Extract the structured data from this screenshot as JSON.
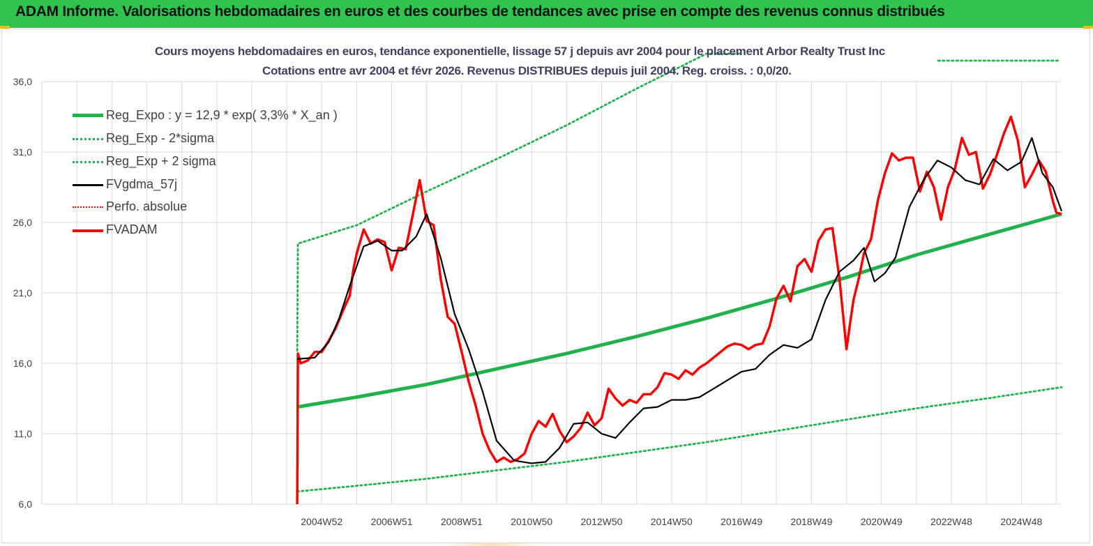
{
  "header": {
    "banner": "ADAM Informe. Valorisations hebdomadaires en euros et des courbes de tendances avec prise en compte des revenus connus distribués"
  },
  "colors": {
    "banner": "#2fc44e",
    "reg_expo": "#22b14c",
    "sigma": "#22b14c",
    "fvgdma": "#000000",
    "perfo": "#ff0000",
    "fvadam": "#ff0000",
    "grid": "#d9d9d9"
  },
  "chart_data": {
    "type": "line",
    "title_line1": "Cours moyens hebdomadaires en euros, tendance exponentielle, lissage 57 j depuis avr 2004 pour le placement Arbor Realty Trust Inc",
    "title_line2": "Cotations entre avr 2004 et févr 2026. Revenus DISTRIBUES depuis juil 2004. Reg. croiss. : 0,0/20.",
    "ylim": [
      6,
      36
    ],
    "xlim": [
      1997.0,
      2026.15
    ],
    "y_ticks": [
      "6,0",
      "11,0",
      "16,0",
      "21,0",
      "26,0",
      "31,0",
      "36,0"
    ],
    "x_ticks": [
      {
        "label": "2004W52",
        "x": 2005.0
      },
      {
        "label": "2006W51",
        "x": 2007.0
      },
      {
        "label": "2008W51",
        "x": 2009.0
      },
      {
        "label": "2010W50",
        "x": 2011.0
      },
      {
        "label": "2012W50",
        "x": 2013.0
      },
      {
        "label": "2014W50",
        "x": 2015.0
      },
      {
        "label": "2016W49",
        "x": 2017.0
      },
      {
        "label": "2018W49",
        "x": 2019.0
      },
      {
        "label": "2020W49",
        "x": 2021.0
      },
      {
        "label": "2022W48",
        "x": 2023.0
      },
      {
        "label": "2024W48",
        "x": 2025.0
      }
    ],
    "grid": true,
    "legend_position": "top-left",
    "series": [
      {
        "name": "Reg_Expo : y = 12,9 * exp( 3,3% *  X_an )",
        "style": "solid-thick",
        "color": "#22b14c",
        "x": [
          2004.3,
          2006,
          2008,
          2010,
          2012,
          2014,
          2016,
          2018,
          2020,
          2022,
          2024,
          2026.15
        ],
        "y": [
          12.9,
          13.6,
          14.5,
          15.6,
          16.7,
          17.9,
          19.2,
          20.6,
          22.1,
          23.7,
          25.1,
          26.6
        ]
      },
      {
        "name": "Reg_Exp - 2*sigma",
        "style": "dotted",
        "color": "#22b14c",
        "x": [
          2004.3,
          2006,
          2008,
          2010,
          2012,
          2014,
          2016,
          2018,
          2020,
          2022,
          2024,
          2026.15
        ],
        "y": [
          6.9,
          7.3,
          7.8,
          8.4,
          9.0,
          9.7,
          10.4,
          11.2,
          12.0,
          12.8,
          13.5,
          14.3
        ]
      },
      {
        "name": "Reg_Exp + 2 sigma",
        "style": "dotted",
        "color": "#22b14c",
        "x": [
          2004.3,
          2004.32,
          2006,
          2008,
          2010,
          2012,
          2014,
          2016,
          2017.0
        ],
        "y": [
          16.9,
          24.5,
          25.8,
          28.2,
          30.5,
          32.9,
          35.5,
          38.3,
          39.3
        ]
      },
      {
        "name": "FVgdma_57j",
        "style": "solid",
        "color": "#000000",
        "x": [
          2004.3,
          2004.8,
          2005.2,
          2005.5,
          2005.8,
          2006.2,
          2006.6,
          2007.0,
          2007.3,
          2007.7,
          2008.0,
          2008.4,
          2008.8,
          2009.2,
          2009.6,
          2010.0,
          2010.5,
          2011.0,
          2011.4,
          2011.8,
          2012.2,
          2012.6,
          2013.0,
          2013.4,
          2013.8,
          2014.2,
          2014.6,
          2015.0,
          2015.4,
          2015.8,
          2016.2,
          2016.6,
          2017.0,
          2017.4,
          2017.8,
          2018.2,
          2018.6,
          2019.0,
          2019.4,
          2019.8,
          2020.2,
          2020.5,
          2020.8,
          2021.1,
          2021.4,
          2021.8,
          2022.2,
          2022.6,
          2023.0,
          2023.4,
          2023.8,
          2024.2,
          2024.6,
          2025.0,
          2025.3,
          2025.6,
          2025.9,
          2026.15
        ],
        "y": [
          16.3,
          16.4,
          17.5,
          19.2,
          21.5,
          24.3,
          24.7,
          24.0,
          24.0,
          25.0,
          26.6,
          23.5,
          19.5,
          17.0,
          14.0,
          10.5,
          9.1,
          8.9,
          9.0,
          10.0,
          11.7,
          11.8,
          11.0,
          10.7,
          11.8,
          12.8,
          12.9,
          13.4,
          13.4,
          13.6,
          14.2,
          14.8,
          15.4,
          15.6,
          16.6,
          17.3,
          17.1,
          17.7,
          20.5,
          22.5,
          23.3,
          24.2,
          21.8,
          22.4,
          23.5,
          27.1,
          29.0,
          30.4,
          29.9,
          29.0,
          28.7,
          30.5,
          29.7,
          30.3,
          32.0,
          29.5,
          28.5,
          26.8
        ]
      },
      {
        "name": "Perfo. absolue",
        "style": "dotted",
        "color": "#ff0000",
        "x": [],
        "y": []
      },
      {
        "name": "FVADAM",
        "style": "solid-thick",
        "color": "#ff0000",
        "x": [
          2004.3,
          2004.32,
          2004.4,
          2004.6,
          2004.8,
          2005.0,
          2005.2,
          2005.4,
          2005.6,
          2005.8,
          2005.9,
          2006.0,
          2006.2,
          2006.4,
          2006.6,
          2006.8,
          2007.0,
          2007.2,
          2007.4,
          2007.6,
          2007.8,
          2008.0,
          2008.2,
          2008.4,
          2008.6,
          2008.8,
          2009.0,
          2009.2,
          2009.4,
          2009.6,
          2009.8,
          2010.0,
          2010.2,
          2010.4,
          2010.6,
          2010.8,
          2011.0,
          2011.2,
          2011.4,
          2011.6,
          2011.8,
          2012.0,
          2012.2,
          2012.4,
          2012.6,
          2012.8,
          2013.0,
          2013.2,
          2013.4,
          2013.6,
          2013.8,
          2014.0,
          2014.2,
          2014.4,
          2014.6,
          2014.8,
          2015.0,
          2015.2,
          2015.4,
          2015.6,
          2015.8,
          2016.0,
          2016.2,
          2016.4,
          2016.6,
          2016.8,
          2017.0,
          2017.2,
          2017.4,
          2017.6,
          2017.8,
          2018.0,
          2018.2,
          2018.4,
          2018.6,
          2018.8,
          2019.0,
          2019.2,
          2019.4,
          2019.6,
          2019.8,
          2020.0,
          2020.1,
          2020.2,
          2020.25,
          2020.35,
          2020.5,
          2020.7,
          2020.9,
          2021.1,
          2021.3,
          2021.5,
          2021.7,
          2021.9,
          2022.1,
          2022.3,
          2022.5,
          2022.7,
          2022.9,
          2023.1,
          2023.3,
          2023.5,
          2023.7,
          2023.9,
          2024.1,
          2024.3,
          2024.5,
          2024.7,
          2024.9,
          2025.1,
          2025.3,
          2025.5,
          2025.7,
          2025.9,
          2026.0,
          2026.15
        ],
        "y": [
          6.0,
          16.7,
          16.0,
          16.2,
          16.8,
          16.8,
          17.6,
          18.5,
          19.7,
          20.8,
          22.6,
          23.8,
          25.5,
          24.5,
          24.8,
          24.6,
          22.6,
          24.2,
          24.1,
          26.5,
          29.0,
          26.1,
          25.8,
          22.0,
          19.3,
          18.8,
          16.8,
          14.7,
          13.0,
          11.0,
          9.8,
          9.0,
          9.3,
          9.0,
          9.2,
          9.6,
          11.0,
          11.9,
          11.5,
          12.4,
          11.2,
          10.4,
          10.8,
          11.4,
          12.5,
          11.6,
          12.1,
          14.2,
          13.5,
          13.0,
          13.4,
          13.2,
          13.8,
          13.8,
          14.3,
          15.3,
          15.2,
          14.9,
          15.5,
          15.2,
          15.7,
          16.0,
          16.4,
          16.8,
          17.2,
          17.4,
          17.3,
          17.0,
          17.3,
          17.4,
          18.6,
          20.6,
          21.5,
          20.4,
          22.9,
          23.4,
          22.5,
          24.7,
          25.5,
          25.6,
          22.0,
          17.0,
          18.8,
          20.5,
          21.0,
          22.0,
          23.8,
          24.8,
          27.6,
          29.5,
          30.9,
          30.4,
          30.6,
          30.6,
          28.2,
          29.6,
          28.5,
          26.2,
          28.5,
          29.8,
          32.0,
          30.8,
          31.0,
          28.4,
          29.4,
          30.8,
          32.3,
          33.5,
          31.8,
          28.5,
          29.4,
          30.4,
          29.6,
          27.5,
          26.7,
          26.6
        ]
      }
    ]
  }
}
